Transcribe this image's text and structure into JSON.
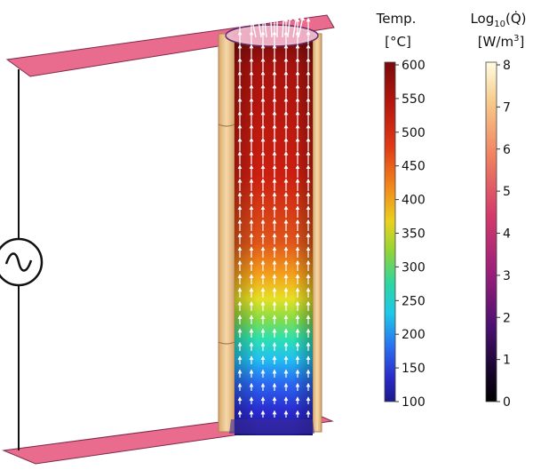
{
  "temperature_legend": {
    "title_line1": "Temp.",
    "title_line2": "[°C]",
    "ticks": [
      "600",
      "550",
      "500",
      "450",
      "400",
      "350",
      "300",
      "250",
      "200",
      "150",
      "100"
    ],
    "range": [
      100,
      600
    ],
    "colormap": [
      "#ffffff00"
    ]
  },
  "heat_legend": {
    "title_base": "Log",
    "title_sub": "10",
    "title_arg": "(Q̇)",
    "title_unit_prefix": "[W/m",
    "title_unit_sup": "3",
    "title_unit_suffix": "]",
    "ticks": [
      "8",
      "7",
      "6",
      "5",
      "4",
      "3",
      "2",
      "1",
      "0"
    ],
    "range": [
      0,
      8
    ]
  },
  "colors": {
    "plate": "#e86a8a",
    "plate_edge": "#8a2b4a",
    "insulation": "#f0c898",
    "insulation_edge": "#b88a5a",
    "wire": "#111111",
    "arrow": "#ffffff"
  },
  "source_icon": "ac-voltage-source-icon"
}
